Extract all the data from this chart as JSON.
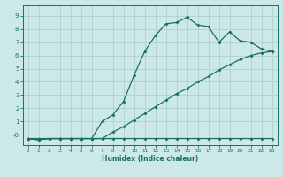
{
  "xlabel": "Humidex (Indice chaleur)",
  "bg_color": "#cce8e8",
  "grid_color": "#aacccc",
  "line_color": "#1a7060",
  "xlim": [
    -0.5,
    23.5
  ],
  "ylim": [
    -0.8,
    9.8
  ],
  "yticks": [
    0,
    1,
    2,
    3,
    4,
    5,
    6,
    7,
    8,
    9
  ],
  "xticks": [
    0,
    1,
    2,
    3,
    4,
    5,
    6,
    7,
    8,
    9,
    10,
    11,
    12,
    13,
    14,
    15,
    16,
    17,
    18,
    19,
    20,
    21,
    22,
    23
  ],
  "line1_x": [
    0,
    1,
    2,
    3,
    4,
    5,
    6,
    7,
    8,
    9,
    10,
    11,
    12,
    13,
    14,
    15,
    16,
    17,
    18,
    19,
    20,
    21,
    22,
    23
  ],
  "line1_y": [
    -0.3,
    -0.4,
    -0.3,
    -0.3,
    -0.3,
    -0.3,
    -0.3,
    -0.3,
    -0.3,
    -0.3,
    -0.3,
    -0.3,
    -0.3,
    -0.3,
    -0.3,
    -0.3,
    -0.3,
    -0.3,
    -0.3,
    -0.3,
    -0.3,
    -0.3,
    -0.3,
    -0.3
  ],
  "line2_x": [
    0,
    1,
    2,
    3,
    4,
    5,
    6,
    7,
    8,
    9,
    10,
    11,
    12,
    13,
    14,
    15,
    16,
    17,
    18,
    19,
    20,
    21,
    22,
    23
  ],
  "line2_y": [
    -0.3,
    -0.4,
    -0.3,
    -0.3,
    -0.3,
    -0.3,
    -0.3,
    1.0,
    1.5,
    2.5,
    4.5,
    6.3,
    7.5,
    8.4,
    8.5,
    8.9,
    8.3,
    8.2,
    7.0,
    7.8,
    7.1,
    7.0,
    6.5,
    6.3
  ],
  "line3_x": [
    0,
    1,
    2,
    3,
    4,
    5,
    6,
    7,
    8,
    9,
    10,
    11,
    12,
    13,
    14,
    15,
    16,
    17,
    18,
    19,
    20,
    21,
    22,
    23
  ],
  "line3_y": [
    -0.3,
    -0.3,
    -0.3,
    -0.3,
    -0.3,
    -0.3,
    -0.3,
    -0.3,
    0.2,
    0.6,
    1.1,
    1.6,
    2.1,
    2.6,
    3.1,
    3.5,
    4.0,
    4.4,
    4.9,
    5.3,
    5.7,
    6.0,
    6.2,
    6.3
  ]
}
